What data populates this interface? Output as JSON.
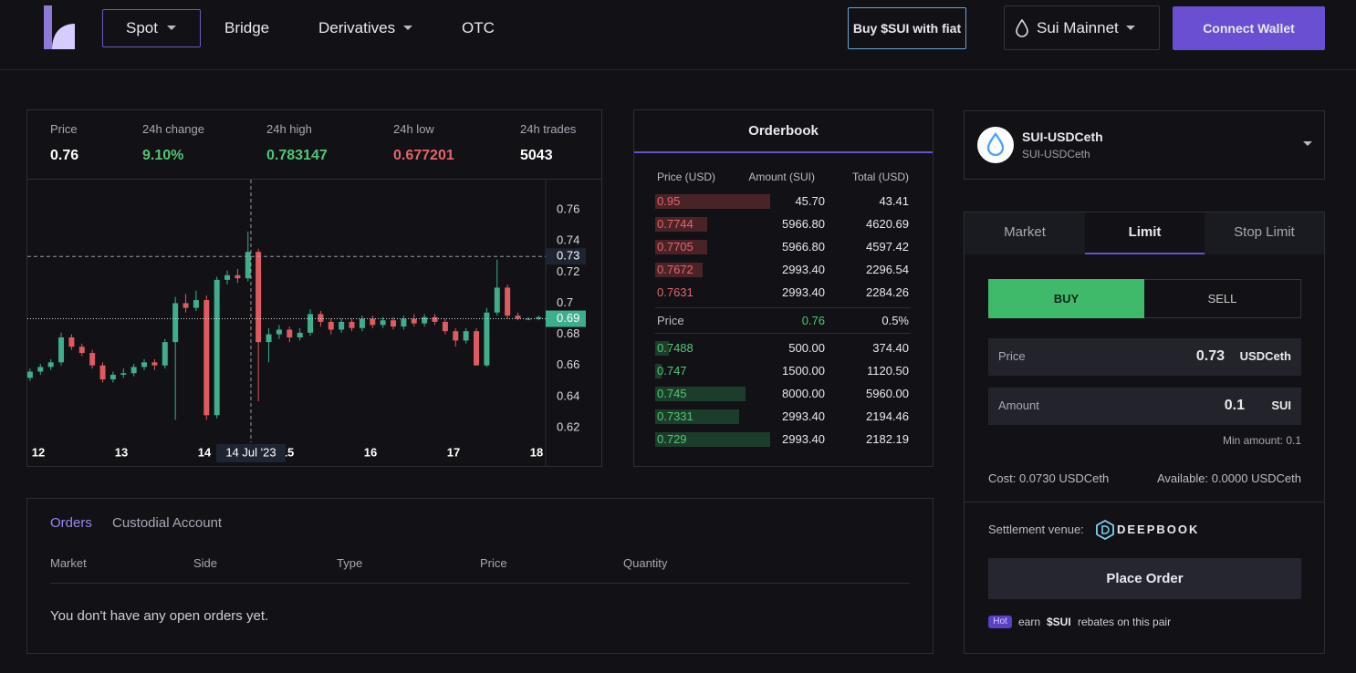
{
  "nav": {
    "items": [
      "Spot",
      "Bridge",
      "Derivatives",
      "OTC"
    ],
    "buy_fiat": "Buy $SUI with fiat",
    "network": "Sui Mainnet",
    "connect": "Connect Wallet"
  },
  "stats": [
    {
      "label": "Price",
      "value": "0.76"
    },
    {
      "label": "24h change",
      "value": "9.10%"
    },
    {
      "label": "24h high",
      "value": "0.783147"
    },
    {
      "label": "24h low",
      "value": "0.677201"
    },
    {
      "label": "24h trades",
      "value": "5043"
    }
  ],
  "chart_data": {
    "type": "candlestick",
    "x": [
      11.9,
      12.025,
      12.15,
      12.275,
      12.4,
      12.525,
      12.65,
      12.775,
      12.9,
      13.025,
      13.15,
      13.275,
      13.4,
      13.525,
      13.65,
      13.775,
      13.9,
      14.025,
      14.15,
      14.275,
      14.4,
      14.525,
      14.65,
      14.775,
      14.9,
      15.025,
      15.15,
      15.275,
      15.4,
      15.525,
      15.65,
      15.775,
      15.9,
      16.025,
      16.15,
      16.275,
      16.4,
      16.525,
      16.65,
      16.775,
      16.9,
      17.025,
      17.15,
      17.275,
      17.4,
      17.525,
      17.65,
      17.775,
      17.9,
      18.025
    ],
    "open": [
      0.652,
      0.656,
      0.659,
      0.662,
      0.678,
      0.672,
      0.668,
      0.66,
      0.651,
      0.654,
      0.655,
      0.659,
      0.662,
      0.66,
      0.675,
      0.7,
      0.697,
      0.702,
      0.628,
      0.715,
      0.718,
      0.716,
      0.733,
      0.675,
      0.68,
      0.683,
      0.678,
      0.681,
      0.693,
      0.688,
      0.683,
      0.688,
      0.684,
      0.69,
      0.686,
      0.689,
      0.685,
      0.69,
      0.687,
      0.691,
      0.688,
      0.682,
      0.676,
      0.682,
      0.66,
      0.694,
      0.71,
      0.692,
      0.69,
      0.69
    ],
    "high": [
      0.658,
      0.661,
      0.664,
      0.681,
      0.68,
      0.674,
      0.67,
      0.662,
      0.656,
      0.658,
      0.661,
      0.664,
      0.664,
      0.677,
      0.704,
      0.706,
      0.708,
      0.705,
      0.717,
      0.721,
      0.722,
      0.746,
      0.735,
      0.684,
      0.686,
      0.685,
      0.684,
      0.696,
      0.695,
      0.69,
      0.69,
      0.69,
      0.692,
      0.692,
      0.691,
      0.691,
      0.692,
      0.693,
      0.693,
      0.693,
      0.69,
      0.684,
      0.684,
      0.684,
      0.697,
      0.728,
      0.712,
      0.694,
      0.691,
      0.692
    ],
    "low": [
      0.65,
      0.654,
      0.657,
      0.66,
      0.67,
      0.666,
      0.658,
      0.649,
      0.649,
      0.652,
      0.653,
      0.657,
      0.657,
      0.658,
      0.625,
      0.694,
      0.695,
      0.625,
      0.626,
      0.712,
      0.713,
      0.714,
      0.637,
      0.662,
      0.677,
      0.675,
      0.676,
      0.679,
      0.685,
      0.68,
      0.681,
      0.682,
      0.682,
      0.684,
      0.684,
      0.683,
      0.683,
      0.685,
      0.685,
      0.686,
      0.68,
      0.672,
      0.674,
      0.66,
      0.659,
      0.692,
      0.69,
      0.689,
      0.689,
      0.689
    ],
    "close": [
      0.656,
      0.659,
      0.662,
      0.678,
      0.672,
      0.668,
      0.66,
      0.651,
      0.654,
      0.655,
      0.659,
      0.662,
      0.66,
      0.675,
      0.7,
      0.697,
      0.702,
      0.628,
      0.715,
      0.718,
      0.716,
      0.733,
      0.675,
      0.68,
      0.683,
      0.678,
      0.681,
      0.693,
      0.688,
      0.683,
      0.688,
      0.684,
      0.69,
      0.686,
      0.689,
      0.685,
      0.69,
      0.687,
      0.691,
      0.688,
      0.682,
      0.676,
      0.682,
      0.66,
      0.694,
      0.71,
      0.692,
      0.69,
      0.69,
      0.691
    ],
    "up_color": "#3fae8c",
    "down_color": "#e05a5f",
    "xlim": [
      11.868,
      18.11
    ],
    "xticks": [
      12,
      13,
      14,
      15,
      16,
      17,
      18
    ],
    "ylim": [
      0.6106,
      0.7794
    ],
    "yticks": [
      0.62,
      0.64,
      0.66,
      0.68,
      0.7,
      0.72,
      0.74,
      0.76
    ],
    "crosshair": {
      "x": 14.56,
      "x_label": "14 Jul '23",
      "y": 0.73
    },
    "last_price": 0.69
  },
  "orderbook": {
    "title": "Orderbook",
    "columns": [
      "Price (USD)",
      "Amount (SUI)",
      "Total (USD)"
    ],
    "asks": [
      [
        "0.95",
        "45.70",
        "43.41"
      ],
      [
        "0.7744",
        "5966.80",
        "4620.69"
      ],
      [
        "0.7705",
        "5966.80",
        "4597.42"
      ],
      [
        "0.7672",
        "2993.40",
        "2296.54"
      ],
      [
        "0.7631",
        "2993.40",
        "2284.26"
      ]
    ],
    "mid": {
      "label": "Price",
      "price": "0.76",
      "spread": "0.5%"
    },
    "bids": [
      [
        "0.7488",
        "500.00",
        "374.40"
      ],
      [
        "0.747",
        "1500.00",
        "1120.50"
      ],
      [
        "0.745",
        "8000.00",
        "5960.00"
      ],
      [
        "0.7331",
        "2993.40",
        "2194.46"
      ],
      [
        "0.729",
        "2993.40",
        "2182.19"
      ]
    ]
  },
  "market": {
    "pair": "SUI-USDCeth",
    "pair_sub": "SUI-USDCeth"
  },
  "order_form": {
    "tabs": [
      "Market",
      "Limit",
      "Stop Limit"
    ],
    "sides": [
      "BUY",
      "SELL"
    ],
    "price_label": "Price",
    "price": "0.73",
    "price_unit": "USDCeth",
    "amount_label": "Amount",
    "amount": "0.1",
    "amount_unit": "SUI",
    "min_amount": "Min amount: 0.1",
    "cost": "Cost: 0.0730 USDCeth",
    "available": "Available: 0.0000 USDCeth",
    "settlement": "Settlement venue:",
    "venue": "DEEPBOOK",
    "place": "Place Order",
    "hot": "Hot",
    "rebate": [
      "earn",
      "$SUI",
      "rebates on this pair"
    ]
  },
  "orders": {
    "tabs": [
      "Orders",
      "Custodial Account"
    ],
    "columns": [
      "Market",
      "Side",
      "Type",
      "Price",
      "Quantity"
    ],
    "empty": "You don't have any open orders yet."
  }
}
